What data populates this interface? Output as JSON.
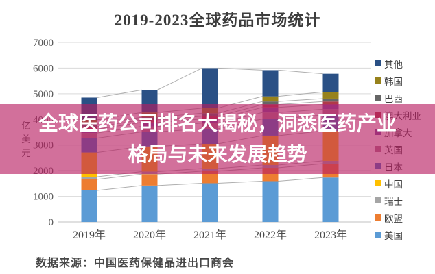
{
  "title": "2019-2023全球药品市场统计",
  "overlay": {
    "line1": "全球医药公司排名大揭秘，洞悉医药产业",
    "line2": "格局与未来发展趋势",
    "background": "rgba(184, 28, 97, 0.63)",
    "text_color": "#ffffff"
  },
  "source_note": "数据来源：中国医药保健品进出口商会",
  "colors": {
    "title_text": "#3d3d3d",
    "axis_text": "#595959",
    "gridline": "#d9d9d9",
    "axis_line": "#c0c0c0",
    "connector_line": "#aeaeae",
    "legend_text": "#404040"
  },
  "chart_data": {
    "type": "bar",
    "stacked": true,
    "title": "2019-2023全球药品市场统计",
    "xlabel": "",
    "ylabel": "亿美元",
    "ylim": [
      0,
      7000
    ],
    "ytick_interval": 1000,
    "ytick_labels": [
      "0",
      "1000",
      "2000",
      "3000",
      "4000",
      "5000",
      "6000",
      "7000"
    ],
    "grid": true,
    "legend_position": "right",
    "legend_order": "top-to-bottom is reverse of stack order",
    "connector_lines": true,
    "categories": [
      "2019年",
      "2020年",
      "2021年",
      "2022年",
      "2023年"
    ],
    "series": [
      {
        "name": "美国",
        "color": "#5b9bd5",
        "values": [
          1230,
          1420,
          1510,
          1590,
          1730
        ]
      },
      {
        "name": "欧盟",
        "color": "#ed7d31",
        "values": [
          430,
          445,
          470,
          520,
          540
        ]
      },
      {
        "name": "瑞士",
        "color": "#a5a5a5",
        "values": [
          100,
          100,
          105,
          108,
          110
        ]
      },
      {
        "name": "中国",
        "color": "#ffc000",
        "values": [
          950,
          980,
          960,
          1150,
          1170
        ]
      },
      {
        "name": "日本",
        "color": "#4472c4",
        "values": [
          560,
          570,
          590,
          650,
          620
        ]
      },
      {
        "name": "英国",
        "color": "#ad7a92",
        "values": [
          200,
          210,
          220,
          250,
          230
        ]
      },
      {
        "name": "加拿大",
        "color": "#7d4fa0",
        "values": [
          150,
          155,
          165,
          200,
          180
        ]
      },
      {
        "name": "澳大利亚",
        "color": "#b03a48",
        "values": [
          95,
          100,
          105,
          110,
          115
        ]
      },
      {
        "name": "巴西",
        "color": "#666666",
        "values": [
          100,
          105,
          115,
          120,
          115
        ]
      },
      {
        "name": "韩国",
        "color": "#97821c",
        "values": [
          165,
          185,
          200,
          200,
          260
        ]
      },
      {
        "name": "其他",
        "color": "#2a5085",
        "values": [
          870,
          880,
          1560,
          1022,
          710
        ]
      }
    ],
    "totals": [
      4850,
      5150,
      6000,
      5920,
      5780
    ]
  }
}
